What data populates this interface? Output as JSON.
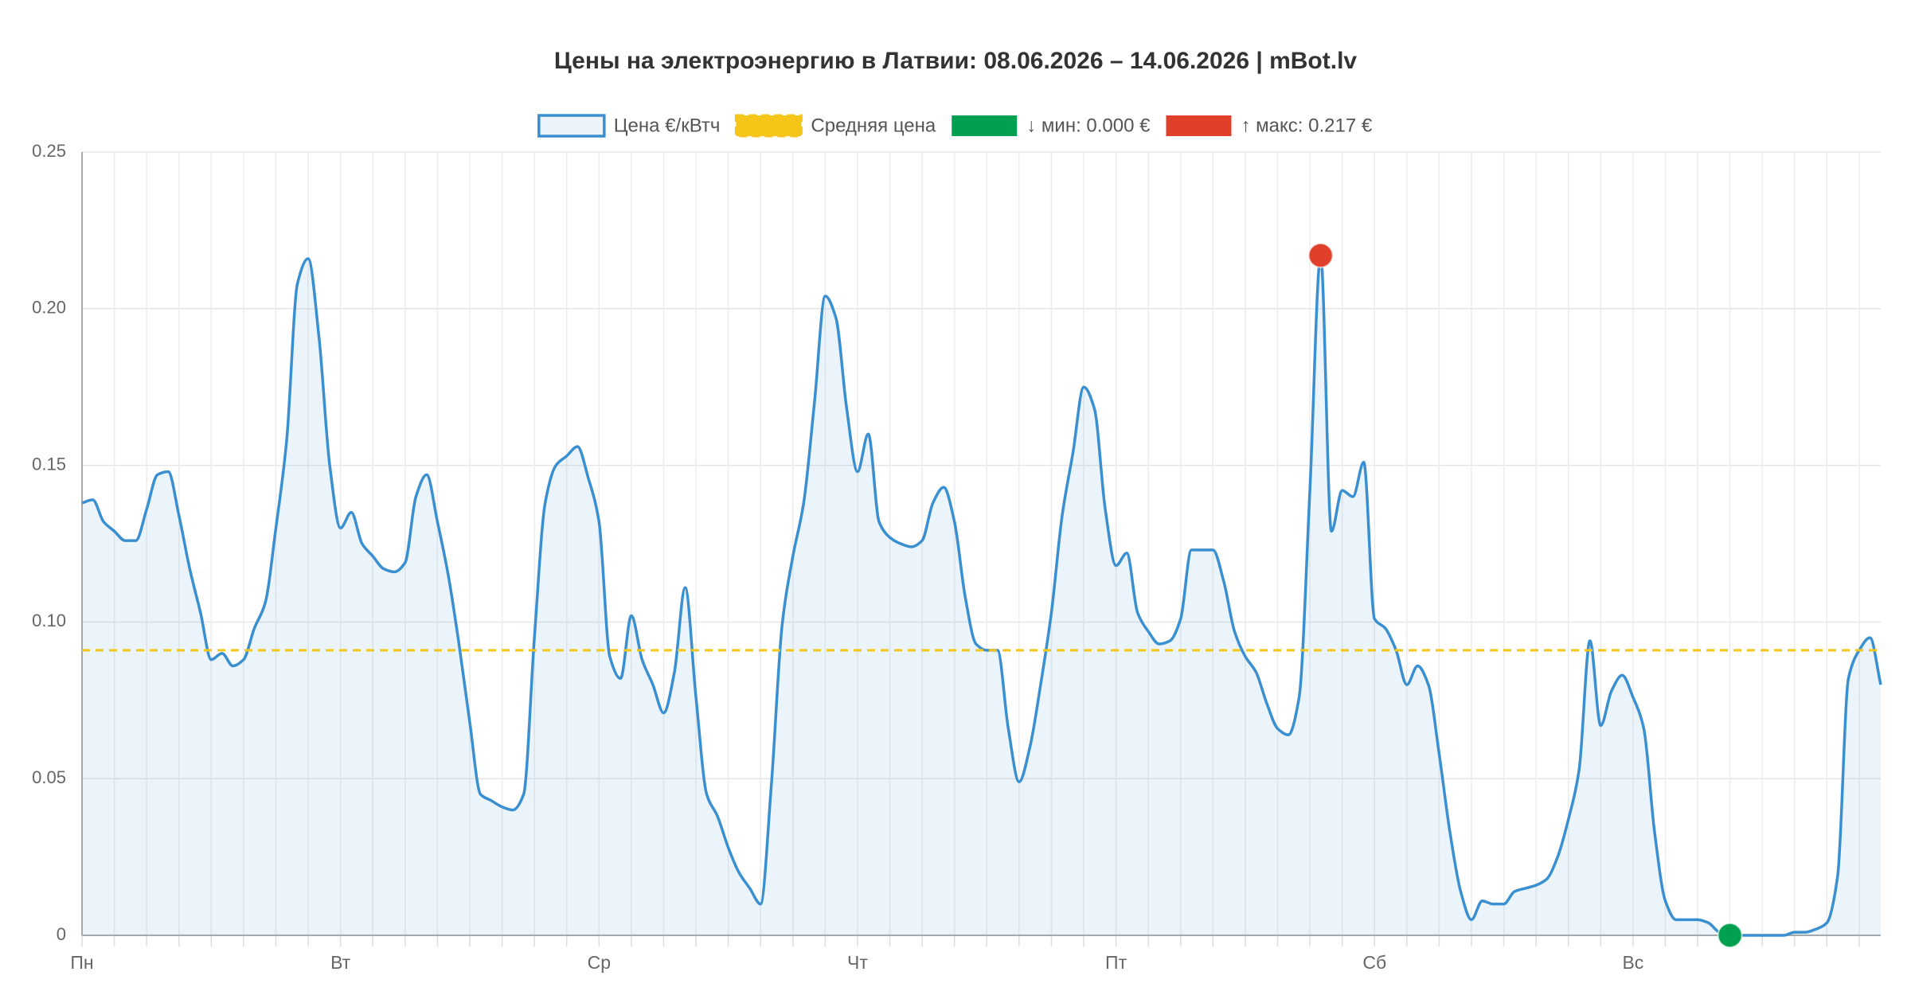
{
  "chart_data": {
    "type": "line",
    "title": "Цены на электроэнергию в Латвии: 08.06.2026 – 14.06.2026 | mBot.lv",
    "categories": [
      "Пн",
      null,
      null,
      null,
      null,
      null,
      null,
      null,
      null,
      null,
      null,
      null,
      null,
      null,
      null,
      null,
      null,
      null,
      null,
      null,
      null,
      null,
      null,
      null,
      "Вт",
      null,
      null,
      null,
      null,
      null,
      null,
      null,
      null,
      null,
      null,
      null,
      null,
      null,
      null,
      null,
      null,
      null,
      null,
      null,
      null,
      null,
      null,
      null,
      "Ср",
      null,
      null,
      null,
      null,
      null,
      null,
      null,
      null,
      null,
      null,
      null,
      null,
      null,
      null,
      null,
      null,
      null,
      null,
      null,
      null,
      null,
      null,
      null,
      "Чт",
      null,
      null,
      null,
      null,
      null,
      null,
      null,
      null,
      null,
      null,
      null,
      null,
      null,
      null,
      null,
      null,
      null,
      null,
      null,
      null,
      null,
      null,
      null,
      "Пт",
      null,
      null,
      null,
      null,
      null,
      null,
      null,
      null,
      null,
      null,
      null,
      null,
      null,
      null,
      null,
      null,
      null,
      null,
      null,
      null,
      null,
      null,
      null,
      "Сб",
      null,
      null,
      null,
      null,
      null,
      null,
      null,
      null,
      null,
      null,
      null,
      null,
      null,
      null,
      null,
      null,
      null,
      null,
      null,
      null,
      null,
      null,
      null,
      "Вс",
      null,
      null,
      null,
      null,
      null,
      null,
      null,
      null,
      null,
      null,
      null,
      null,
      null,
      null,
      null,
      null,
      null,
      null,
      null,
      null,
      null,
      null,
      null
    ],
    "series": [
      {
        "name": "Цена €/кВтч",
        "color": "#3a8fd0",
        "fill": "rgba(58,143,208,0.10)",
        "values": [
          0.138,
          0.139,
          0.132,
          0.129,
          0.126,
          0.126,
          0.136,
          0.147,
          0.148,
          0.134,
          0.117,
          0.103,
          0.088,
          0.09,
          0.086,
          0.088,
          0.098,
          0.106,
          0.13,
          0.158,
          0.208,
          0.216,
          0.191,
          0.15,
          0.13,
          0.135,
          0.125,
          0.121,
          0.117,
          0.116,
          0.119,
          0.14,
          0.147,
          0.132,
          0.115,
          0.093,
          0.068,
          0.045,
          0.043,
          0.041,
          0.04,
          0.045,
          0.095,
          0.138,
          0.15,
          0.153,
          0.156,
          0.146,
          0.132,
          0.089,
          0.082,
          0.102,
          0.088,
          0.08,
          0.071,
          0.084,
          0.111,
          0.076,
          0.045,
          0.038,
          0.028,
          0.02,
          0.015,
          0.01,
          0.048,
          0.099,
          0.121,
          0.138,
          0.17,
          0.204,
          0.197,
          0.168,
          0.148,
          0.16,
          0.132,
          0.127,
          0.125,
          0.124,
          0.126,
          0.138,
          0.143,
          0.132,
          0.108,
          0.093,
          0.091,
          0.091,
          0.066,
          0.049,
          0.06,
          0.08,
          0.103,
          0.134,
          0.154,
          0.175,
          0.168,
          0.136,
          0.118,
          0.122,
          0.103,
          0.097,
          0.093,
          0.094,
          0.101,
          0.123,
          0.123,
          0.123,
          0.113,
          0.097,
          0.089,
          0.084,
          0.074,
          0.066,
          0.064,
          0.076,
          0.142,
          0.217,
          0.129,
          0.142,
          0.14,
          0.151,
          0.101,
          0.098,
          0.091,
          0.08,
          0.086,
          0.08,
          0.058,
          0.033,
          0.014,
          0.005,
          0.011,
          0.01,
          0.01,
          0.014,
          0.015,
          0.016,
          0.018,
          0.025,
          0.037,
          0.053,
          0.094,
          0.067,
          0.078,
          0.083,
          0.076,
          0.066,
          0.033,
          0.011,
          0.005,
          0.005,
          0.005,
          0.004,
          0.001,
          0.0,
          0.0,
          0.0,
          0.0,
          0.0,
          0.0,
          0.001,
          0.001,
          0.002,
          0.004,
          0.019,
          0.082,
          0.091,
          0.095,
          0.08
        ]
      }
    ],
    "average": {
      "name": "Средняя цена",
      "value": 0.091,
      "color": "#f5c518"
    },
    "markers": [
      {
        "name": "↓ мин: 0.000 €",
        "color": "#00a050",
        "index": 153
      },
      {
        "name": "↑ макс: 0.217 €",
        "color": "#e0402a",
        "index": 115
      }
    ],
    "ylim": [
      0,
      0.25
    ],
    "yticks": [
      0,
      0.05,
      {
        "value": 0.1,
        "label": "0.10"
      },
      0.15,
      {
        "value": 0.2,
        "label": "0.20"
      },
      0.25
    ],
    "grid": true,
    "legend": "top"
  }
}
